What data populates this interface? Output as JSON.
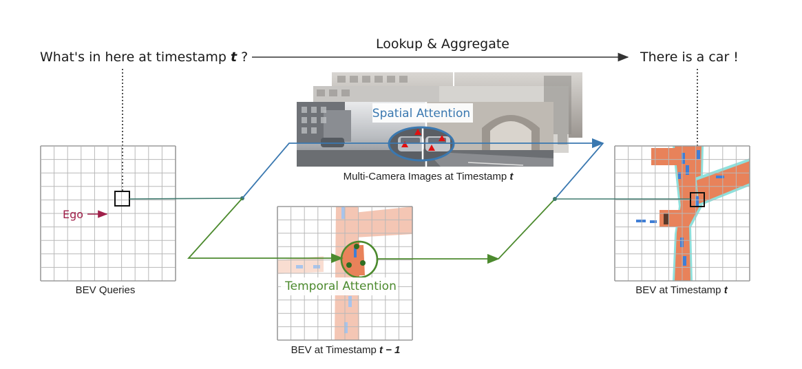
{
  "question": {
    "text": "What's in here at timestamp ",
    "var": "t",
    "suffix": " ?"
  },
  "top_arrow": {
    "label": "Lookup & Aggregate"
  },
  "answer": {
    "text": "There is a car !"
  },
  "bev_queries": {
    "caption": "BEV Queries",
    "ego_label": "Ego"
  },
  "camera_images": {
    "caption_text": "Multi-Camera Images at Timestamp ",
    "caption_var": "t",
    "attention_label": "Spatial Attention"
  },
  "bev_prev": {
    "caption_text": "BEV at Timestamp ",
    "caption_var": "t − 1",
    "attention_label": "Temporal Attention"
  },
  "bev_current": {
    "caption_text": "BEV at Timestamp ",
    "caption_var": "t"
  },
  "colors": {
    "spatial": "#3a78b0",
    "temporal": "#4c8a2e",
    "ego": "#a0204a",
    "road": "#e8825a",
    "lane": "#3f7ed6",
    "grid": "#b8b8b8",
    "arrow": "#333333"
  },
  "grid_cells": 10
}
